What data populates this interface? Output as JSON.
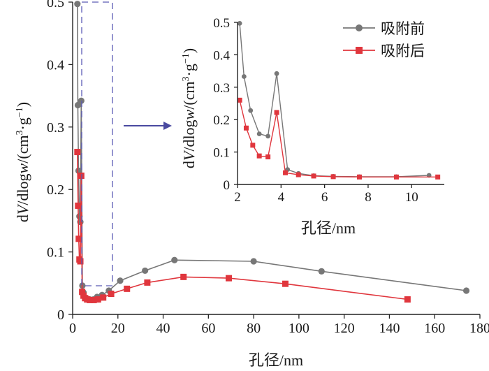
{
  "chart_data": [
    {
      "type": "line",
      "xlabel": "孔径/nm",
      "ylabel": "dV/dlogw/(cm3·g−1)",
      "xlim": [
        0,
        180
      ],
      "ylim": [
        0,
        0.5
      ],
      "xticks": [
        0,
        20,
        40,
        60,
        80,
        100,
        120,
        140,
        160,
        180
      ],
      "yticks": [
        0,
        0.1,
        0.2,
        0.3,
        0.4,
        0.5
      ],
      "legend": "top-right",
      "grid": false,
      "series": [
        {
          "name": "吸附前",
          "color": "#777777",
          "marker": "circle",
          "x": [
            2.1,
            2.3,
            2.6,
            3.0,
            3.4,
            3.8,
            4.3,
            4.8,
            5.5,
            6.4,
            7.5,
            9.2,
            10.8,
            13,
            16,
            21,
            32,
            45,
            80,
            110,
            174
          ],
          "y": [
            0.497,
            0.335,
            0.23,
            0.157,
            0.148,
            0.342,
            0.046,
            0.035,
            0.027,
            0.025,
            0.024,
            0.024,
            0.028,
            0.031,
            0.038,
            0.054,
            0.07,
            0.087,
            0.085,
            0.069,
            0.038
          ]
        },
        {
          "name": "吸附后",
          "color": "#e0363d",
          "marker": "square",
          "x": [
            2.1,
            2.4,
            2.7,
            3.0,
            3.4,
            3.8,
            4.2,
            4.8,
            5.5,
            6.4,
            7.6,
            9.3,
            11.2,
            13.5,
            17,
            24,
            33,
            49,
            69,
            94,
            148
          ],
          "y": [
            0.26,
            0.174,
            0.121,
            0.088,
            0.085,
            0.222,
            0.036,
            0.03,
            0.026,
            0.024,
            0.023,
            0.023,
            0.024,
            0.027,
            0.033,
            0.041,
            0.051,
            0.06,
            0.058,
            0.049,
            0.024
          ]
        }
      ]
    },
    {
      "type": "line",
      "role": "inset",
      "xlabel": "孔径/nm",
      "ylabel": "dV/dlogw/(cm3·g−1)",
      "xlim": [
        2,
        11.5
      ],
      "ylim": [
        0,
        0.5
      ],
      "xticks": [
        2,
        4,
        6,
        8,
        10
      ],
      "yticks": [
        0,
        0.1,
        0.2,
        0.3,
        0.4,
        0.5
      ],
      "series": [
        {
          "name": "吸附前",
          "color": "#777777",
          "marker": "circle",
          "x": [
            2.1,
            2.3,
            2.6,
            3.0,
            3.4,
            3.8,
            4.3,
            4.8,
            5.5,
            6.4,
            7.6,
            9.3,
            10.8
          ],
          "y": [
            0.497,
            0.333,
            0.228,
            0.156,
            0.149,
            0.342,
            0.046,
            0.034,
            0.027,
            0.025,
            0.024,
            0.024,
            0.028
          ]
        },
        {
          "name": "吸附后",
          "color": "#e0363d",
          "marker": "square",
          "x": [
            2.1,
            2.4,
            2.7,
            3.0,
            3.4,
            3.8,
            4.2,
            4.8,
            5.5,
            6.4,
            7.6,
            9.3,
            11.2
          ],
          "y": [
            0.26,
            0.174,
            0.121,
            0.088,
            0.085,
            0.222,
            0.036,
            0.03,
            0.026,
            0.024,
            0.023,
            0.023,
            0.023
          ]
        }
      ]
    }
  ],
  "legend": {
    "before": "吸附前",
    "after": "吸附后"
  }
}
